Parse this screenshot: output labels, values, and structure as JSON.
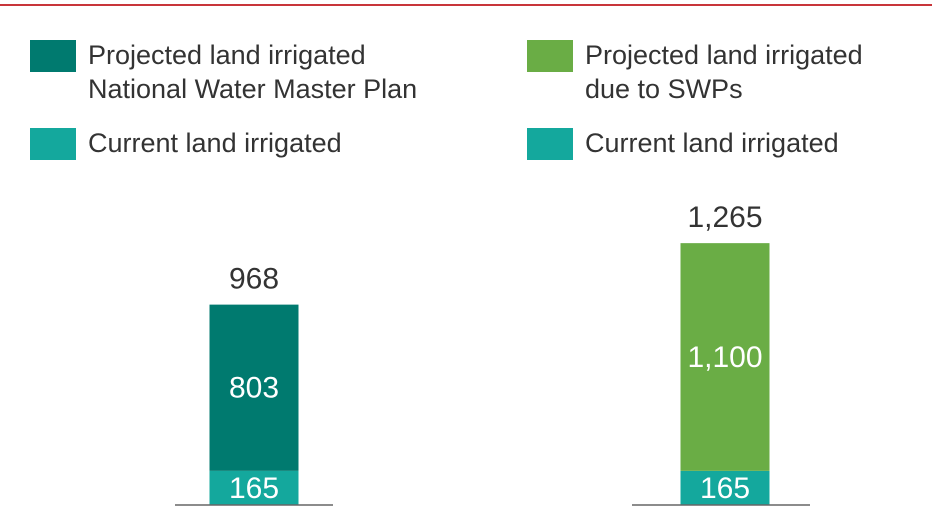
{
  "chart_data": [
    {
      "type": "bar",
      "stacked": true,
      "categories": [
        null
      ],
      "series": [
        {
          "name": "Current land irrigated",
          "color": "#14a89d",
          "values": [
            165
          ]
        },
        {
          "name": "Projected land irrigated National Water Master Plan",
          "color": "#007a6f",
          "values": [
            803
          ]
        }
      ],
      "totals": [
        968
      ]
    },
    {
      "type": "bar",
      "stacked": true,
      "categories": [
        null
      ],
      "series": [
        {
          "name": "Current land irrigated",
          "color": "#14a89d",
          "values": [
            165
          ]
        },
        {
          "name": "Projected land irrigated due to SWPs",
          "color": "#6aad45",
          "values": [
            1100
          ],
          "value_labels": [
            "1,100"
          ]
        }
      ],
      "totals": [
        1265
      ],
      "total_labels": [
        "1,265"
      ]
    }
  ]
}
